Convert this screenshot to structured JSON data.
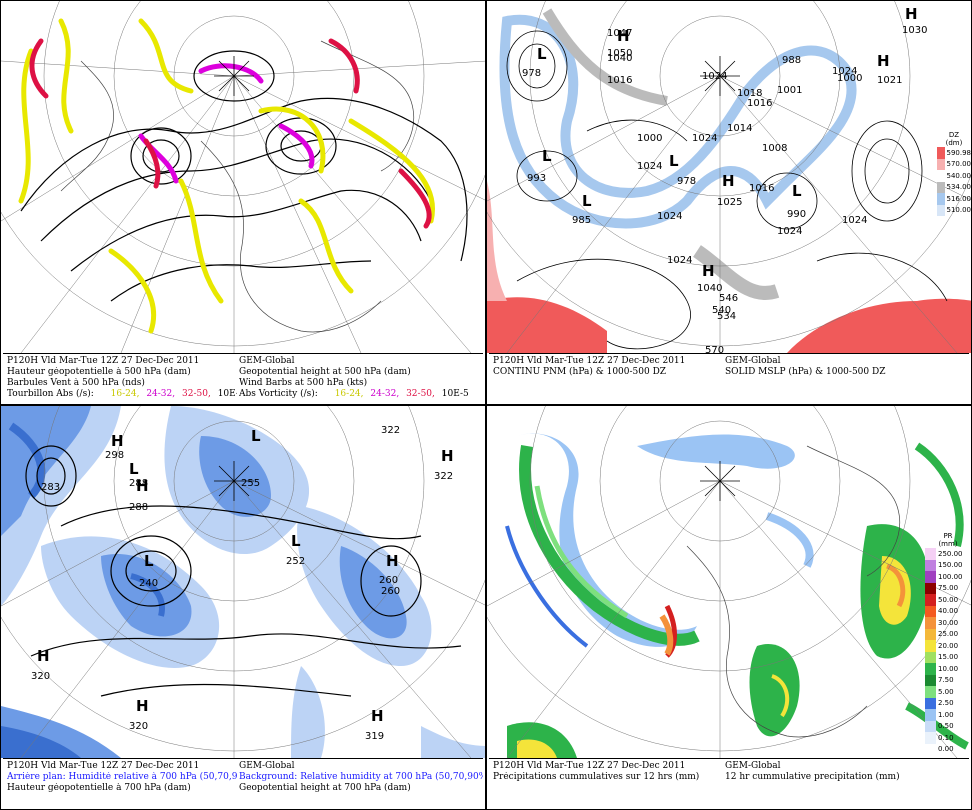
{
  "panels": [
    {
      "id": "p1",
      "caption_left": [
        "P120H Vld Mar-Tue 12Z 27 Dec-Dec 2011",
        "Hauteur géopotentielle à 500 hPa (dam)",
        "Barbules Vent à 500 hPa (nds)",
        "Tourbillon Abs (/s):"
      ],
      "caption_right": [
        "GEM-Global",
        "Geopotential height at 500 hPa (dam)",
        "Wind Barbs at 500 hPa  (kts)",
        "Abs Vorticity (/s):"
      ],
      "vort_ranges": [
        {
          "label": "16-24,",
          "color": "#c8c800"
        },
        {
          "label": "24-32,",
          "color": "#cc00cc"
        },
        {
          "label": "32-50,",
          "color": "#dd1144"
        },
        {
          "label": "10E-5",
          "color": "#000000"
        }
      ]
    },
    {
      "id": "p2",
      "caption_left": [
        "P120H Vld Mar-Tue 12Z 27 Dec-Dec 2011",
        "CONTINU PNM  (hPa) & 1000-500 DZ"
      ],
      "caption_right": [
        "GEM-Global",
        "SOLID  MSLP (hPa) & 1000-500 DZ"
      ],
      "labels": [
        "1030",
        "1024",
        "1040",
        "1016",
        "1024",
        "1000",
        "1024",
        "1024",
        "1024",
        "1024",
        "1024",
        "570",
        "546",
        "540",
        "534",
        "978",
        "993",
        "985",
        "978",
        "990",
        "1000",
        "1024",
        "1025",
        "1008",
        "1014",
        "1018",
        "1016",
        "988",
        "1040",
        "1047",
        "1050",
        "1001",
        "1021",
        "1016"
      ],
      "colorbar": {
        "title": "DZ\n(dm)",
        "ticks": [
          "590.98",
          "570.00",
          "540.00",
          "534.00",
          "516.00",
          "510.00"
        ]
      }
    },
    {
      "id": "p3",
      "caption_left": [
        "P120H Vld Mar-Tue 12Z 27 Dec-Dec 2011",
        "Arrière plan: Humidité relative à 700 hPa (50,70,90%)",
        "Hauteur géopotentielle à 700 hPa (dam)"
      ],
      "caption_right": [
        "GEM-Global",
        "Background: Relative humidity at 700 hPa (50,70,90%)",
        "Geopotential height at 700 hPa (dam)"
      ],
      "labels": [
        "298",
        "283",
        "288",
        "288",
        "255",
        "240",
        "252",
        "260",
        "260",
        "322",
        "322",
        "320",
        "320",
        "319"
      ]
    },
    {
      "id": "p4",
      "caption_left": [
        "P120H Vld Mar-Tue 12Z 27 Dec-Dec 2011",
        "Précipitations cummulatives sur 12 hrs (mm)"
      ],
      "caption_right": [
        "GEM-Global",
        "12 hr cummulative precipitation      (mm)"
      ],
      "colorbar": {
        "title": "PR\n(mm)",
        "ticks": [
          "250.00",
          "150.00",
          "100.00",
          "75.00",
          "50.00",
          "40.00",
          "30.00",
          "25.00",
          "20.00",
          "15.00",
          "10.00",
          "7.50",
          "5.00",
          "2.50",
          "1.00",
          "0.50",
          "0.10",
          "0.00"
        ]
      }
    }
  ],
  "colors": {
    "vort_yellow": "#e8e800",
    "vort_magenta": "#dd00dd",
    "vort_red": "#dd1144",
    "dz_red": "#f05a5a",
    "dz_pink": "#f7b0b0",
    "dz_blue": "#a6c8ee",
    "dz_gray": "#bbbbbb",
    "rh_dark": "#3a6fcf",
    "rh_mid": "#6d9be6",
    "rh_light": "#bcd3f5",
    "pr_green": "#2db34a",
    "pr_lightgreen": "#7ee07e",
    "pr_blue": "#3a6fe0",
    "pr_lightblue": "#9bc4f4",
    "pr_yellow": "#f4e43a",
    "pr_orange": "#f4923a",
    "pr_red": "#d42020"
  }
}
